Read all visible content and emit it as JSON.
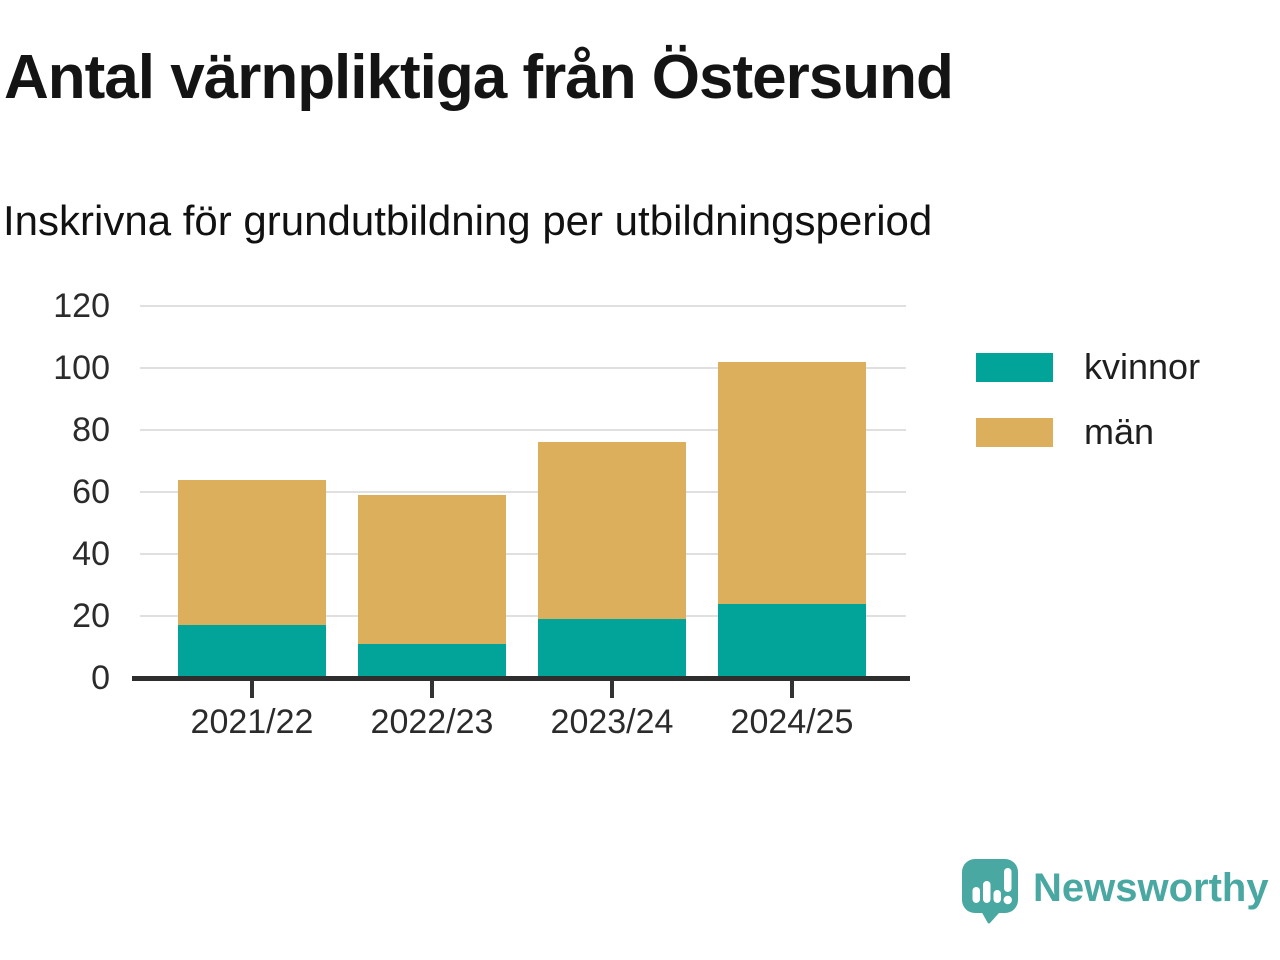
{
  "header": {
    "title": "Antal värnpliktiga från Östersund",
    "subtitle": "Inskrivna för grundutbildning per utbildningsperiod"
  },
  "chart_data": {
    "type": "bar",
    "stacked": true,
    "title": "Antal värnpliktiga från Östersund",
    "subtitle": "Inskrivna för grundutbildning per utbildningsperiod",
    "categories": [
      "2021/22",
      "2022/23",
      "2023/24",
      "2024/25"
    ],
    "series": [
      {
        "name": "kvinnor",
        "color": "#02a399",
        "values": [
          17,
          11,
          19,
          24
        ]
      },
      {
        "name": "män",
        "color": "#dbaf5c",
        "values": [
          47,
          48,
          57,
          78
        ]
      }
    ],
    "totals": [
      64,
      59,
      76,
      102
    ],
    "xlabel": "",
    "ylabel": "",
    "ylim": [
      0,
      120
    ],
    "yticks": [
      0,
      20,
      40,
      60,
      80,
      100,
      120
    ],
    "grid": "horizontal",
    "legend_position": "right"
  },
  "legend": {
    "items": [
      {
        "label": "kvinnor",
        "color": "#02a399"
      },
      {
        "label": "män",
        "color": "#dbaf5c"
      }
    ]
  },
  "footer": {
    "brand": "Newsworthy",
    "brand_color": "#4aa8a2"
  }
}
